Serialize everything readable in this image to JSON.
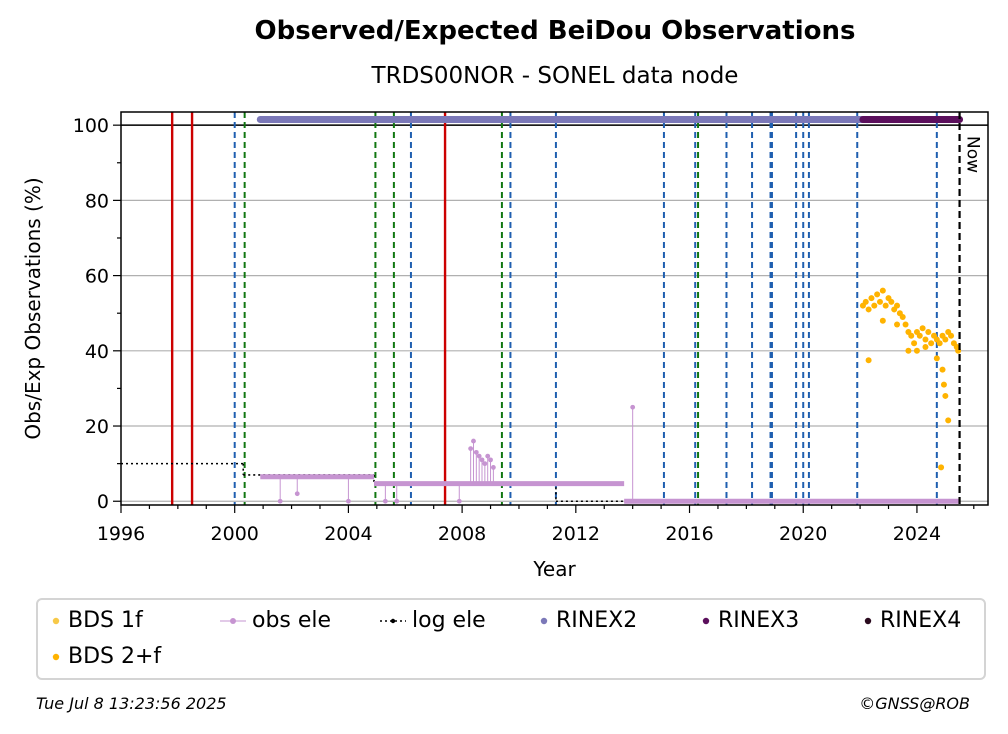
{
  "chart_data": {
    "type": "scatter",
    "title": "Observed/Expected BeiDou Observations",
    "subtitle": "TRDS00NOR - SONEL data node",
    "xlabel": "Year",
    "ylabel": "Obs/Exp Observations (%)",
    "xlim": [
      1996,
      2026.5
    ],
    "ylim": [
      -1,
      103.5
    ],
    "x_ticks": [
      "1996",
      "2000",
      "2004",
      "2008",
      "2012",
      "2016",
      "2020",
      "2024"
    ],
    "y_ticks": [
      "0",
      "20",
      "40",
      "60",
      "80",
      "100"
    ],
    "grid": "horizontal",
    "now_label": "Now",
    "now_year": 2025.5,
    "legend_position": "bottom",
    "colors": {
      "bds_1f": "#f7c948",
      "bds_2f": "#ffb300",
      "obs_ele": "#c694d1",
      "log_ele": "#000000",
      "rinex2": "#7b78b8",
      "rinex3": "#5b0f5c",
      "rinex4": "#2a0a1e",
      "red_events": "#cc0000",
      "blue_events": "#1f5fb0",
      "green_events": "#117711",
      "now_line": "#000000"
    },
    "legend": [
      {
        "key": "bds_1f",
        "label": "BDS 1f"
      },
      {
        "key": "obs_ele",
        "label": "obs ele"
      },
      {
        "key": "log_ele",
        "label": "log ele"
      },
      {
        "key": "rinex2",
        "label": "RINEX2"
      },
      {
        "key": "rinex3",
        "label": "RINEX3"
      },
      {
        "key": "rinex4",
        "label": "RINEX4"
      },
      {
        "key": "bds_2f",
        "label": "BDS 2+f"
      }
    ],
    "red_events": [
      1997.8,
      1998.5,
      2007.4
    ],
    "blue_events": [
      2000.0,
      2006.2,
      2009.7,
      2011.3,
      2015.1,
      2016.2,
      2017.3,
      2018.2,
      2018.85,
      2018.9,
      2019.75,
      2020.0,
      2020.2,
      2021.9,
      2024.7
    ],
    "green_events": [
      2000.35,
      2004.95,
      2005.6,
      2009.4,
      2016.3
    ],
    "rinex2_span": [
      2000.9,
      2022.1
    ],
    "rinex2_y": 101.5,
    "rinex3_span": [
      2022.1,
      2025.5
    ],
    "rinex3_y": 101.5,
    "log_ele_steps": [
      {
        "x0": 1996.0,
        "x1": 2000.3,
        "y": 10
      },
      {
        "x0": 2000.3,
        "x1": 2004.9,
        "y": 7
      },
      {
        "x0": 2004.9,
        "x1": 2011.3,
        "y": 5
      },
      {
        "x0": 2011.3,
        "x1": 2025.5,
        "y": 0
      }
    ],
    "obs_ele_segments": [
      {
        "x0": 2000.9,
        "x1": 2004.9,
        "y": 6.5
      },
      {
        "x0": 2004.9,
        "x1": 2013.7,
        "y": 4.7
      },
      {
        "x0": 2013.7,
        "x1": 2025.5,
        "y": 0
      }
    ],
    "obs_ele_spikes": [
      {
        "x": 2008.3,
        "y": 14
      },
      {
        "x": 2008.4,
        "y": 16
      },
      {
        "x": 2008.5,
        "y": 13
      },
      {
        "x": 2008.6,
        "y": 12
      },
      {
        "x": 2008.7,
        "y": 11
      },
      {
        "x": 2008.8,
        "y": 10
      },
      {
        "x": 2008.9,
        "y": 12
      },
      {
        "x": 2009.0,
        "y": 11
      },
      {
        "x": 2009.1,
        "y": 9
      },
      {
        "x": 2014.0,
        "y": 25
      }
    ],
    "obs_ele_dips": [
      {
        "x": 2001.6,
        "y": 0
      },
      {
        "x": 2002.2,
        "y": 2
      },
      {
        "x": 2004.0,
        "y": 0
      },
      {
        "x": 2005.3,
        "y": 0
      },
      {
        "x": 2007.9,
        "y": 0
      },
      {
        "x": 2005.7,
        "y": 0
      }
    ],
    "bds_2f_points": [
      [
        2022.1,
        52
      ],
      [
        2022.2,
        53
      ],
      [
        2022.3,
        51
      ],
      [
        2022.4,
        54
      ],
      [
        2022.5,
        52
      ],
      [
        2022.6,
        55
      ],
      [
        2022.7,
        53
      ],
      [
        2022.8,
        56
      ],
      [
        2022.9,
        52
      ],
      [
        2023.0,
        54
      ],
      [
        2023.1,
        53
      ],
      [
        2023.2,
        51
      ],
      [
        2023.3,
        52
      ],
      [
        2023.4,
        50
      ],
      [
        2023.5,
        49
      ],
      [
        2023.6,
        47
      ],
      [
        2023.7,
        45
      ],
      [
        2023.8,
        44
      ],
      [
        2023.9,
        42
      ],
      [
        2024.0,
        45
      ],
      [
        2024.1,
        44
      ],
      [
        2024.2,
        46
      ],
      [
        2024.3,
        43
      ],
      [
        2024.4,
        45
      ],
      [
        2024.5,
        42
      ],
      [
        2024.6,
        44
      ],
      [
        2024.7,
        43
      ],
      [
        2024.8,
        42
      ],
      [
        2024.9,
        44
      ],
      [
        2025.0,
        43
      ],
      [
        2025.1,
        45
      ],
      [
        2025.2,
        44
      ],
      [
        2025.3,
        42
      ],
      [
        2025.4,
        41
      ],
      [
        2025.45,
        40
      ],
      [
        2022.3,
        37.5
      ],
      [
        2022.8,
        48
      ],
      [
        2023.3,
        47
      ],
      [
        2023.7,
        40
      ],
      [
        2024.0,
        40
      ],
      [
        2024.3,
        41
      ],
      [
        2024.7,
        38
      ],
      [
        2024.9,
        35
      ],
      [
        2024.95,
        31
      ],
      [
        2025.0,
        28
      ],
      [
        2025.1,
        21.5
      ],
      [
        2024.85,
        9
      ]
    ]
  },
  "footer": {
    "timestamp": "Tue Jul  8 13:23:56 2025",
    "credit": "©GNSS@ROB"
  }
}
